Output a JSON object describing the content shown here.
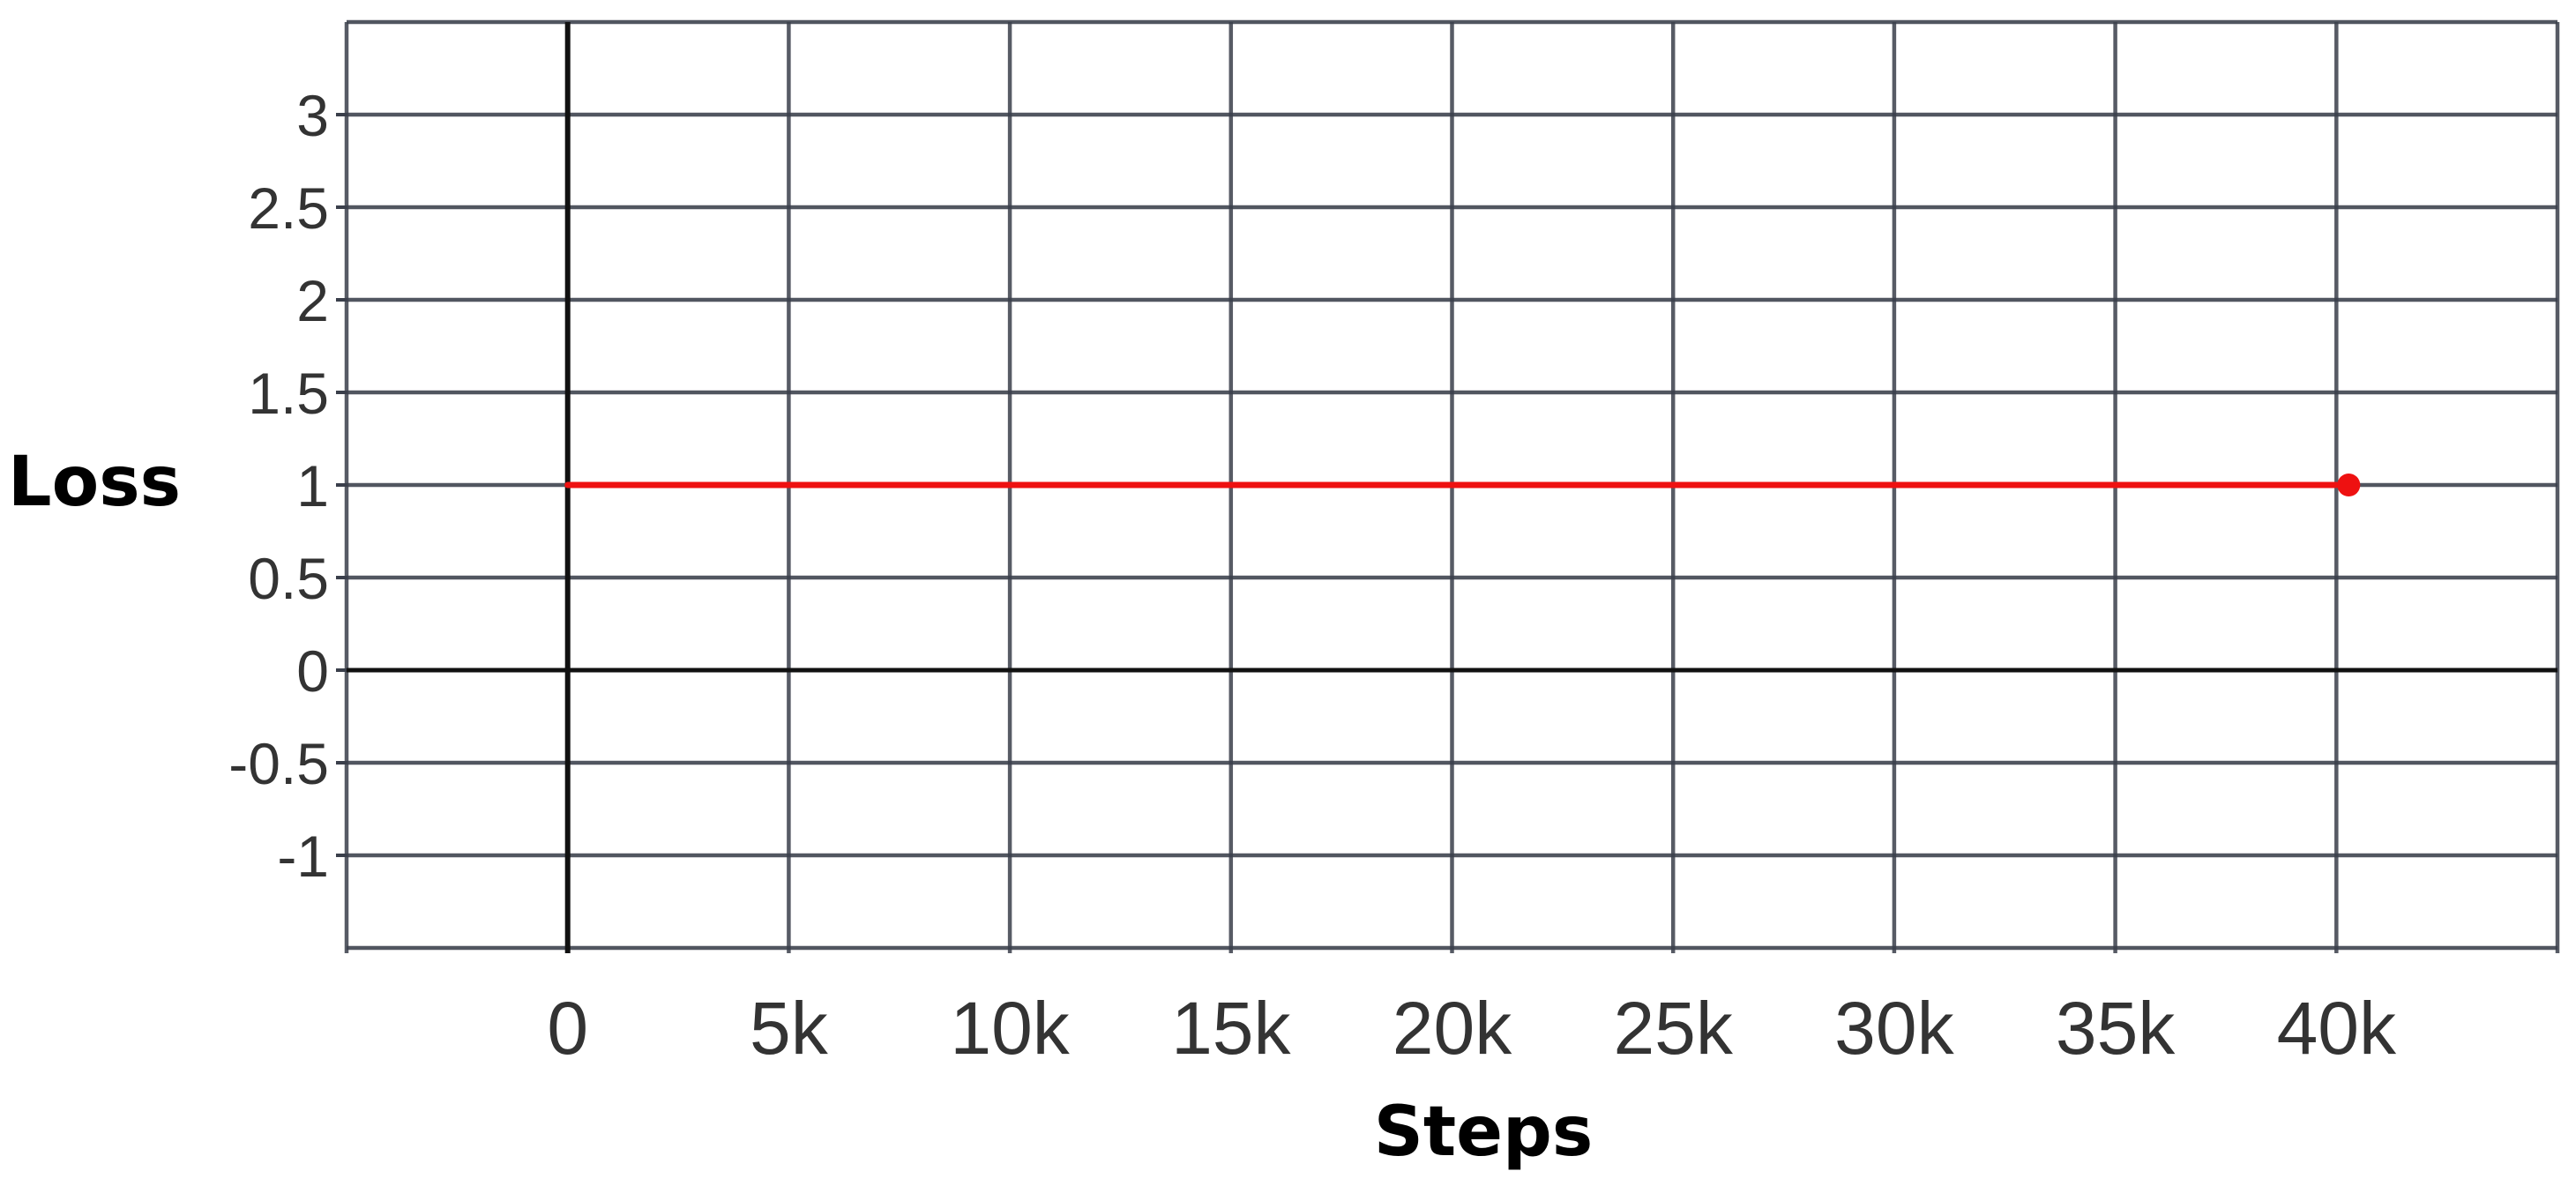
{
  "chart_data": {
    "type": "line",
    "title": "",
    "xlabel": "Steps",
    "ylabel": "Loss",
    "x_ticks": [
      0,
      5000,
      10000,
      15000,
      20000,
      25000,
      30000,
      35000,
      40000
    ],
    "x_tick_labels": [
      "0",
      "5k",
      "10k",
      "15k",
      "20k",
      "25k",
      "30k",
      "35k",
      "40k"
    ],
    "y_ticks": [
      3,
      2.5,
      2,
      1.5,
      1,
      0.5,
      0,
      -0.5,
      -1
    ],
    "y_tick_labels": [
      "3",
      "2.5",
      "2",
      "1.5",
      "1",
      "0.5",
      "0",
      "-0.5",
      "-1"
    ],
    "xlim": [
      -5000,
      45000
    ],
    "ylim": [
      -1.5,
      3.5
    ],
    "grid": true,
    "series": [
      {
        "color": "#ee1111",
        "x": [
          0,
          40000
        ],
        "y": [
          1,
          1
        ],
        "end_marker": true
      }
    ],
    "colors": {
      "grid": "#3a3f4b",
      "zero_line": "#111111"
    }
  }
}
